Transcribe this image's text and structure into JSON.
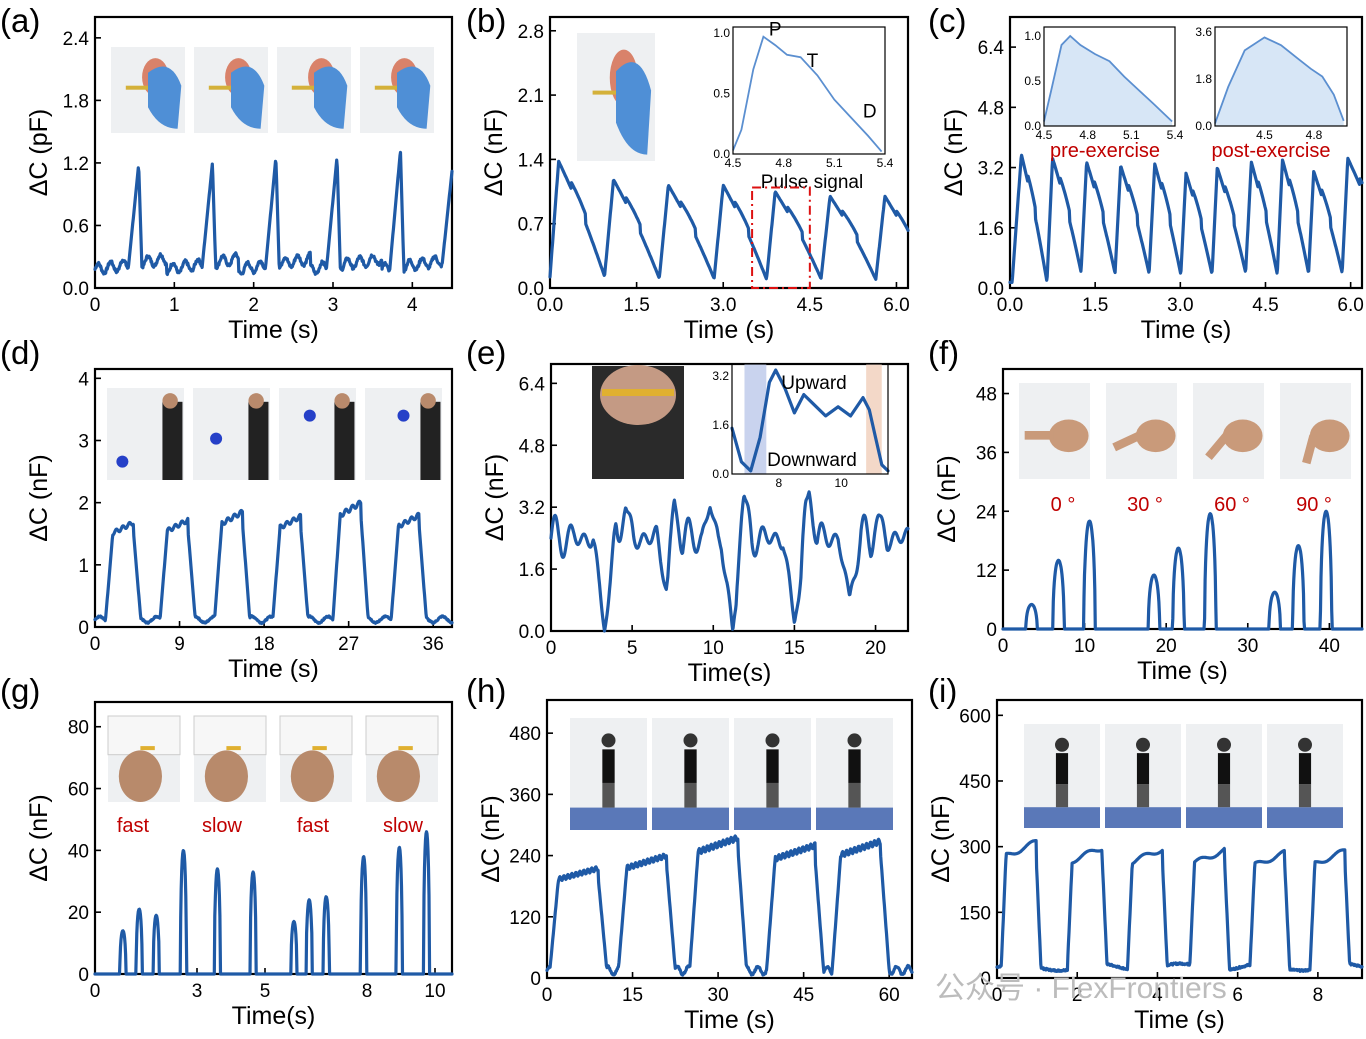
{
  "watermark": "公众号 · FlexFrontiers",
  "colors": {
    "trace": "#1f5aa6",
    "inset_trace": "#5b8fd0",
    "red_text": "#c00000"
  },
  "chart_data": [
    {
      "id": "a",
      "label": "(a)",
      "type": "line",
      "xlabel": "Time (s)",
      "ylabel": "ΔC (pF)",
      "xlim": [
        0,
        4.5
      ],
      "ylim": [
        0,
        2.6
      ],
      "xticks": [
        0,
        1,
        2,
        3,
        4
      ],
      "xtick_labels": [
        "0",
        "1",
        "2",
        "3",
        "4"
      ],
      "yticks": [
        0,
        0.6,
        1.2,
        1.8,
        2.4
      ],
      "ytick_labels": [
        "0.0",
        "0.6",
        "1.2",
        "1.8",
        "2.4"
      ],
      "signal": {
        "kind": "spike",
        "baseline": 0.18,
        "drift": 0.1,
        "wobble": 0.05,
        "width": 0.07,
        "peaks": [
          [
            0.55,
            1.18
          ],
          [
            1.48,
            1.2
          ],
          [
            2.28,
            1.25
          ],
          [
            3.05,
            1.25
          ],
          [
            3.85,
            1.32
          ],
          [
            4.5,
            1.12
          ]
        ]
      },
      "photo_count": 4
    },
    {
      "id": "b",
      "label": "(b)",
      "type": "line",
      "xlabel": "Time (s)",
      "ylabel": "ΔC (nF)",
      "xlim": [
        0,
        6.2
      ],
      "ylim": [
        0,
        2.95
      ],
      "xticks": [
        0,
        1.5,
        3,
        4.5,
        6
      ],
      "xtick_labels": [
        "0.0",
        "1.5",
        "3.0",
        "4.5",
        "6.0"
      ],
      "yticks": [
        0,
        0.7,
        1.4,
        2.1,
        2.8
      ],
      "ytick_labels": [
        "0.0",
        "0.7",
        "1.4",
        "2.1",
        "2.8"
      ],
      "signal": {
        "kind": "pulse",
        "baseline": 0.02,
        "notch": 0.42,
        "peaks": [
          [
            0.15,
            1.38
          ],
          [
            1.1,
            1.18
          ],
          [
            2.05,
            1.12
          ],
          [
            3.0,
            1.12
          ],
          [
            3.9,
            1.05
          ],
          [
            4.85,
            1.0
          ],
          [
            5.8,
            1.0
          ]
        ]
      },
      "highlight_box": [
        3.5,
        4.5,
        0,
        1.05
      ],
      "inset": {
        "title": "Pulse signal",
        "xlim": [
          4.5,
          5.4
        ],
        "ylim": [
          0,
          1.05
        ],
        "xticks": [
          4.5,
          4.8,
          5.1,
          5.4
        ],
        "xtick_labels": [
          "4.5",
          "4.8",
          "5.1",
          "5.4"
        ],
        "yticks": [
          0,
          0.5,
          1.0
        ],
        "ytick_labels": [
          "0.0",
          "0.5",
          "1.0"
        ],
        "curve": [
          [
            4.5,
            0.03
          ],
          [
            4.55,
            0.2
          ],
          [
            4.62,
            0.7
          ],
          [
            4.68,
            0.97
          ],
          [
            4.75,
            0.9
          ],
          [
            4.82,
            0.82
          ],
          [
            4.9,
            0.8
          ],
          [
            5.0,
            0.65
          ],
          [
            5.1,
            0.45
          ],
          [
            5.2,
            0.3
          ],
          [
            5.3,
            0.15
          ],
          [
            5.38,
            0.02
          ]
        ],
        "annotations": [
          {
            "text": "P",
            "x": 4.75,
            "y": 0.98
          },
          {
            "text": "T",
            "x": 4.97,
            "y": 0.72
          },
          {
            "text": "D",
            "x": 5.31,
            "y": 0.3
          }
        ]
      }
    },
    {
      "id": "c",
      "label": "(c)",
      "type": "line",
      "xlabel": "Time (s)",
      "ylabel": "ΔC (nF)",
      "xlim": [
        0,
        6.2
      ],
      "ylim": [
        0,
        7.2
      ],
      "xticks": [
        0,
        1.5,
        3,
        4.5,
        6
      ],
      "xtick_labels": [
        "0.0",
        "1.5",
        "3.0",
        "4.5",
        "6.0"
      ],
      "yticks": [
        0,
        1.6,
        3.2,
        4.8,
        6.4
      ],
      "ytick_labels": [
        "0.0",
        "1.6",
        "3.2",
        "4.8",
        "6.4"
      ],
      "signal": {
        "kind": "pulse",
        "baseline": 0.15,
        "notch": 0.35,
        "peaks": [
          [
            0.2,
            3.55
          ],
          [
            0.75,
            3.45
          ],
          [
            1.35,
            3.35
          ],
          [
            1.95,
            3.25
          ],
          [
            2.55,
            3.3
          ],
          [
            3.1,
            3.05
          ],
          [
            3.65,
            3.2
          ],
          [
            4.25,
            3.35
          ],
          [
            4.8,
            3.4
          ],
          [
            5.35,
            3.1
          ],
          [
            5.95,
            3.45
          ]
        ]
      },
      "insets": [
        {
          "xlim": [
            4.5,
            5.4
          ],
          "ylim": [
            0,
            1.1
          ],
          "xticks": [
            4.5,
            4.8,
            5.1,
            5.4
          ],
          "xtick_labels": [
            "4.5",
            "4.8",
            "5.1",
            "5.4"
          ],
          "yticks": [
            0,
            0.5,
            1.0
          ],
          "ytick_labels": [
            "0.0",
            "0.5",
            "1.0"
          ],
          "caption": "pre-exercise",
          "curve": [
            [
              4.5,
              0.05
            ],
            [
              4.55,
              0.4
            ],
            [
              4.62,
              0.9
            ],
            [
              4.68,
              1.0
            ],
            [
              4.75,
              0.9
            ],
            [
              4.85,
              0.8
            ],
            [
              4.95,
              0.72
            ],
            [
              5.05,
              0.55
            ],
            [
              5.15,
              0.4
            ],
            [
              5.25,
              0.25
            ],
            [
              5.38,
              0.05
            ]
          ]
        },
        {
          "xlim": [
            4.2,
            5.0
          ],
          "ylim": [
            0,
            3.8
          ],
          "xticks": [
            4.5,
            4.8
          ],
          "xtick_labels": [
            "4.5",
            "4.8"
          ],
          "yticks": [
            0,
            1.8,
            3.6
          ],
          "ytick_labels": [
            "0.0",
            "1.8",
            "3.6"
          ],
          "caption": "post-exercise",
          "curve": [
            [
              4.2,
              0.1
            ],
            [
              4.28,
              1.5
            ],
            [
              4.38,
              2.9
            ],
            [
              4.5,
              3.4
            ],
            [
              4.6,
              3.1
            ],
            [
              4.7,
              2.6
            ],
            [
              4.78,
              2.2
            ],
            [
              4.85,
              1.9
            ],
            [
              4.92,
              1.2
            ],
            [
              4.98,
              0.2
            ]
          ]
        }
      ]
    },
    {
      "id": "d",
      "label": "(d)",
      "type": "line",
      "xlabel": "Time (s)",
      "ylabel": "ΔC (nF)",
      "xlim": [
        0,
        38
      ],
      "ylim": [
        0,
        4.15
      ],
      "xticks": [
        0,
        9,
        18,
        27,
        36
      ],
      "xtick_labels": [
        "0",
        "9",
        "18",
        "27",
        "36"
      ],
      "yticks": [
        0,
        1,
        2,
        3,
        4
      ],
      "ytick_labels": [
        "0",
        "1",
        "2",
        "3",
        "4"
      ],
      "signal": {
        "kind": "plateau",
        "baseline": 0.12,
        "wobble": 0.05,
        "rise": 1.3,
        "width": 2.2,
        "peaks": [
          [
            3.0,
            1.68
          ],
          [
            8.8,
            1.72
          ],
          [
            14.6,
            1.85
          ],
          [
            20.8,
            1.78
          ],
          [
            27.2,
            2.0
          ],
          [
            33.4,
            1.8
          ]
        ]
      },
      "photo_count": 4
    },
    {
      "id": "e",
      "label": "(e)",
      "type": "line",
      "xlabel": "Time(s)",
      "ylabel": "ΔC (nF)",
      "xlim": [
        0,
        22
      ],
      "ylim": [
        0,
        6.9
      ],
      "xticks": [
        0,
        5,
        10,
        15,
        20
      ],
      "xtick_labels": [
        "0",
        "5",
        "10",
        "15",
        "20"
      ],
      "yticks": [
        0,
        1.6,
        3.2,
        4.8,
        6.4
      ],
      "ytick_labels": [
        "0.0",
        "1.6",
        "3.2",
        "4.8",
        "6.4"
      ],
      "signal": {
        "kind": "wave",
        "baseline": 2.4,
        "amp": 0.35,
        "freq": 1.1,
        "dips": [
          [
            3.3,
            0.0
          ],
          [
            7.2,
            0.9
          ],
          [
            11.2,
            0.0
          ],
          [
            15.0,
            0.2
          ],
          [
            18.4,
            0.9
          ]
        ],
        "peaks": [
          [
            4.6,
            3.2
          ],
          [
            7.6,
            3.4
          ],
          [
            9.8,
            3.2
          ],
          [
            11.9,
            3.5
          ],
          [
            15.9,
            3.6
          ],
          [
            20.2,
            3.0
          ]
        ]
      },
      "inset": {
        "xlim": [
          6.5,
          11.5
        ],
        "ylim": [
          0,
          3.6
        ],
        "xticks": [
          8,
          10
        ],
        "xtick_labels": [
          "8",
          "10"
        ],
        "yticks": [
          0,
          1.6,
          3.2
        ],
        "ytick_labels": [
          "0.0",
          "1.6",
          "3.2"
        ],
        "upward_label": "Upward",
        "downward_label": "Downward",
        "curve": [
          [
            6.5,
            1.5
          ],
          [
            6.8,
            0.4
          ],
          [
            7.1,
            0.1
          ],
          [
            7.4,
            1.2
          ],
          [
            7.7,
            3.0
          ],
          [
            7.9,
            3.4
          ],
          [
            8.2,
            2.8
          ],
          [
            8.5,
            2.0
          ],
          [
            8.8,
            2.6
          ],
          [
            9.1,
            2.3
          ],
          [
            9.5,
            1.9
          ],
          [
            9.9,
            2.2
          ],
          [
            10.3,
            1.9
          ],
          [
            10.7,
            2.5
          ],
          [
            10.9,
            2.1
          ],
          [
            11.1,
            1.2
          ],
          [
            11.3,
            0.3
          ],
          [
            11.5,
            0.1
          ]
        ],
        "blue_band": [
          6.9,
          7.6
        ],
        "orange_band": [
          10.8,
          11.3
        ]
      }
    },
    {
      "id": "f",
      "label": "(f)",
      "type": "line",
      "xlabel": "Time (s)",
      "ylabel": "ΔC (nF)",
      "xlim": [
        0,
        44
      ],
      "ylim": [
        0,
        53
      ],
      "xticks": [
        0,
        10,
        20,
        30,
        40
      ],
      "xtick_labels": [
        "0",
        "10",
        "20",
        "30",
        "40"
      ],
      "yticks": [
        0,
        12,
        24,
        36,
        48
      ],
      "ytick_labels": [
        "0",
        "12",
        "24",
        "36",
        "48"
      ],
      "signal": {
        "kind": "bump",
        "baseline": 0.0,
        "width": 0.7,
        "peaks": [
          [
            3.5,
            5
          ],
          [
            6.8,
            14
          ],
          [
            10.6,
            22
          ],
          [
            18.5,
            11
          ],
          [
            21.5,
            16.5
          ],
          [
            25.4,
            23.5
          ],
          [
            33.3,
            7.5
          ],
          [
            36.2,
            17
          ],
          [
            39.6,
            24
          ]
        ]
      },
      "angle_labels": [
        "0 °",
        "30 °",
        "60 °",
        "90 °"
      ],
      "photo_count": 4
    },
    {
      "id": "g",
      "label": "(g)",
      "type": "line",
      "xlabel": "Time(s)",
      "ylabel": "ΔC (nF)",
      "xlim": [
        0,
        10.5
      ],
      "ylim": [
        0,
        88
      ],
      "xticks": [
        0,
        3,
        5,
        8,
        10
      ],
      "xtick_labels": [
        "0",
        "3",
        "5",
        "8",
        "10"
      ],
      "yticks": [
        0,
        20,
        40,
        60,
        80
      ],
      "ytick_labels": [
        "0",
        "20",
        "40",
        "60",
        "80"
      ],
      "signal": {
        "kind": "bump",
        "baseline": 0.0,
        "width": 0.09,
        "peaks": [
          [
            0.82,
            14
          ],
          [
            1.3,
            21
          ],
          [
            1.8,
            19
          ],
          [
            2.6,
            40
          ],
          [
            3.6,
            34
          ],
          [
            4.65,
            33
          ],
          [
            5.85,
            17
          ],
          [
            6.3,
            24
          ],
          [
            6.8,
            25
          ],
          [
            7.9,
            38
          ],
          [
            8.95,
            41
          ],
          [
            9.75,
            46
          ]
        ]
      },
      "speed_labels": [
        "fast",
        "slow",
        "fast",
        "slow"
      ],
      "photo_count": 4
    },
    {
      "id": "h",
      "label": "(h)",
      "type": "line",
      "xlabel": "Time (s)",
      "ylabel": "ΔC (nF)",
      "xlim": [
        0,
        64
      ],
      "ylim": [
        0,
        545
      ],
      "xticks": [
        0,
        15,
        30,
        45,
        60
      ],
      "xtick_labels": [
        "0",
        "15",
        "30",
        "45",
        "60"
      ],
      "yticks": [
        0,
        120,
        240,
        360,
        480
      ],
      "ytick_labels": [
        "0",
        "120",
        "240",
        "360",
        "480"
      ],
      "signal": {
        "kind": "plateau",
        "baseline": 15,
        "wobble": 8,
        "rise": 2.5,
        "width": 7.0,
        "peaks": [
          [
            5.5,
            215
          ],
          [
            17.5,
            240
          ],
          [
            30.0,
            275
          ],
          [
            43.5,
            260
          ],
          [
            55.0,
            268
          ]
        ]
      },
      "photo_count": 4
    },
    {
      "id": "i",
      "label": "(i)",
      "type": "line",
      "xlabel": "Time (s)",
      "ylabel": "ΔC (nF)",
      "xlim": [
        0,
        9.1
      ],
      "ylim": [
        0,
        635
      ],
      "xticks": [
        0,
        2,
        4,
        6,
        8
      ],
      "xtick_labels": [
        "0",
        "2",
        "4",
        "6",
        "8"
      ],
      "yticks": [
        0,
        150,
        300,
        450,
        600
      ],
      "ytick_labels": [
        "0",
        "150",
        "300",
        "450",
        "600"
      ],
      "signal": {
        "kind": "plateau",
        "baseline": 25,
        "wobble": 8,
        "rise": 0.2,
        "width": 0.75,
        "peaks": [
          [
            0.6,
            310
          ],
          [
            2.25,
            298
          ],
          [
            3.75,
            295
          ],
          [
            5.3,
            292
          ],
          [
            6.8,
            286
          ],
          [
            8.3,
            290
          ]
        ]
      },
      "photo_count": 4
    }
  ]
}
